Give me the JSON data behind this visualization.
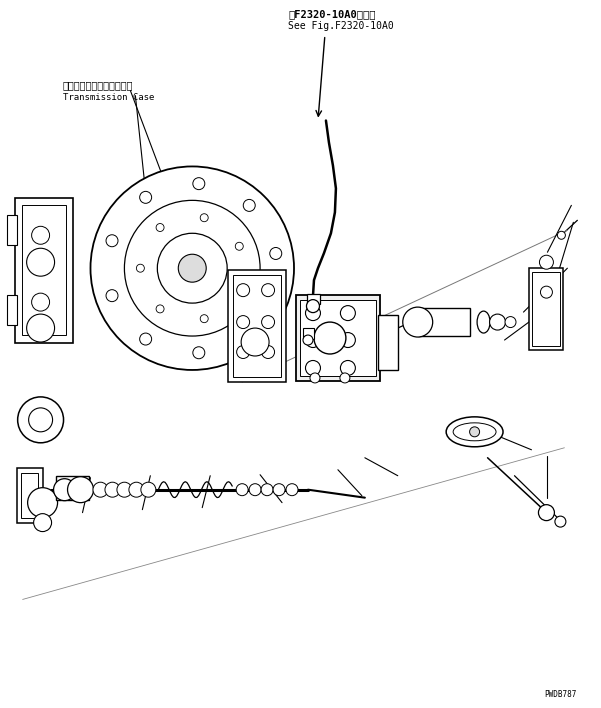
{
  "bg_color": "#ffffff",
  "line_color": "#000000",
  "fig_width": 6.01,
  "fig_height": 7.08,
  "dpi": 100,
  "annotation_top_line1": "第F2320-10A0図参照",
  "annotation_top_line2": "See Fig.F2320-10A0",
  "label_jp": "トランスミッションケース",
  "label_en": "Transmission Case",
  "watermark": "PWDB787"
}
